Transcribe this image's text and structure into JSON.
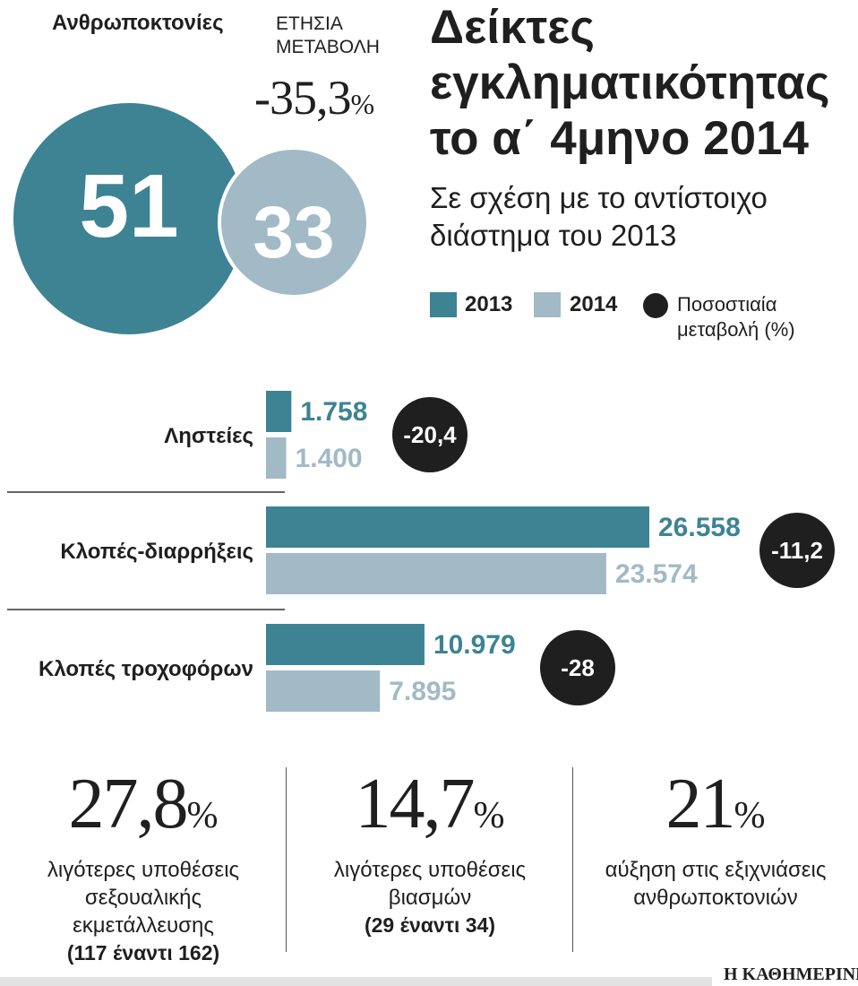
{
  "homicides": {
    "label": "Ανθρωποκτονίες",
    "annual_label_line1": "ΕΤΗΣΙΑ",
    "annual_label_line2": "ΜΕΤΑΒΟΛΗ",
    "change_value": "-35,3",
    "change_unit": "%",
    "value_2013": "51",
    "value_2014": "33"
  },
  "title": {
    "line1": "Δείκτες",
    "line2": "εγκληματικότητας",
    "line3": "το α΄ 4μηνο 2014"
  },
  "subtitle": {
    "line1": "Σε σχέση με το αντίστοιχο",
    "line2": "διάστημα του 2013"
  },
  "legend": {
    "year_2013": "2013",
    "year_2014": "2014",
    "pct_line1": "Ποσοστιαία",
    "pct_line2": "μεταβολή (%)"
  },
  "colors": {
    "2013": "#3d8394",
    "2014": "#a2bac6",
    "badge": "#1f1f1f"
  },
  "chart_data": {
    "type": "bar",
    "orientation": "horizontal",
    "categories": [
      "Ληστείες",
      "Κλοπές-διαρρήξεις",
      "Κλοπές τροχοφόρων"
    ],
    "series": [
      {
        "name": "2013",
        "values": [
          1758,
          26558,
          10979
        ],
        "labels": [
          "1.758",
          "26.558",
          "10.979"
        ]
      },
      {
        "name": "2014",
        "values": [
          1400,
          23574,
          7895
        ],
        "labels": [
          "1.400",
          "23.574",
          "7.895"
        ]
      }
    ],
    "pct_change": [
      "-20,4",
      "-11,2",
      "-28"
    ],
    "xlim": [
      0,
      26558
    ],
    "grid": false,
    "legend_position": "top-right"
  },
  "stats": [
    {
      "value": "27,8",
      "unit": "%",
      "desc_lines": [
        "λιγότερες υποθέσεις",
        "σεξουαλικής",
        "εκμετάλλευσης"
      ],
      "note": "(117 έναντι 162)"
    },
    {
      "value": "14,7",
      "unit": "%",
      "desc_lines": [
        "λιγότερες υποθέσεις",
        "βιασμών"
      ],
      "note": "(29 έναντι 34)"
    },
    {
      "value": "21",
      "unit": "%",
      "desc_lines": [
        "αύξηση στις εξιχνιάσεις",
        "ανθρωποκτονιών"
      ],
      "note": ""
    }
  ],
  "footer": {
    "brand": "Η ΚΑΘΗΜΕΡΙΝΗ"
  }
}
